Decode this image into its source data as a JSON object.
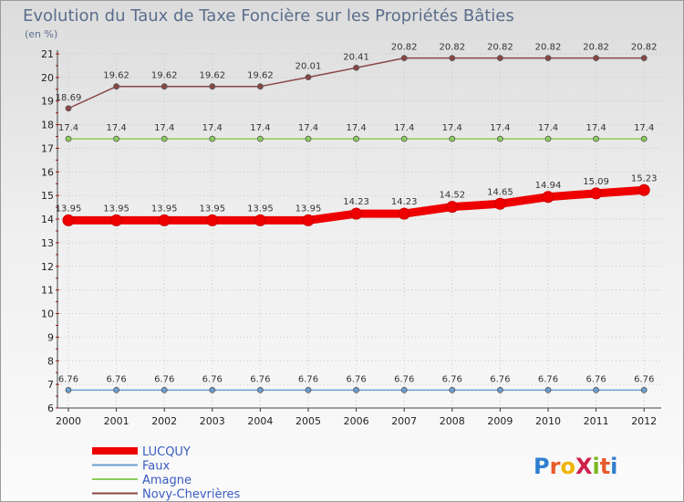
{
  "chart_data": {
    "type": "line",
    "title": "Evolution du Taux de Taxe Foncière sur les Propriétés Bâties",
    "ylabel": "(en %)",
    "xlabel": "",
    "ylim": [
      6,
      21
    ],
    "yticks": [
      6,
      7,
      8,
      9,
      10,
      11,
      12,
      13,
      14,
      15,
      16,
      17,
      18,
      19,
      20,
      21
    ],
    "categories": [
      "2000",
      "2001",
      "2002",
      "2003",
      "2004",
      "2005",
      "2006",
      "2007",
      "2008",
      "2009",
      "2010",
      "2011",
      "2012"
    ],
    "series": [
      {
        "name": "LUCQUY",
        "color": "#ee0000",
        "values": [
          13.95,
          13.95,
          13.95,
          13.95,
          13.95,
          13.95,
          14.23,
          14.23,
          14.52,
          14.65,
          14.94,
          15.09,
          15.23
        ],
        "labels": [
          "13.95",
          "13.95",
          "13.95",
          "13.95",
          "13.95",
          "13.95",
          "14.23",
          "14.23",
          "14.52",
          "14.65",
          "14.94",
          "15.09",
          "15.23"
        ]
      },
      {
        "name": "Faux",
        "color": "#6a9fd0",
        "values": [
          6.76,
          6.76,
          6.76,
          6.76,
          6.76,
          6.76,
          6.76,
          6.76,
          6.76,
          6.76,
          6.76,
          6.76,
          6.76
        ],
        "labels": [
          "6.76",
          "6.76",
          "6.76",
          "6.76",
          "6.76",
          "6.76",
          "6.76",
          "6.76",
          "6.76",
          "6.76",
          "6.76",
          "6.76",
          "6.76"
        ]
      },
      {
        "name": "Amagne",
        "color": "#8ccc5a",
        "values": [
          17.4,
          17.4,
          17.4,
          17.4,
          17.4,
          17.4,
          17.4,
          17.4,
          17.4,
          17.4,
          17.4,
          17.4,
          17.4
        ],
        "labels": [
          "17.4",
          "17.4",
          "17.4",
          "17.4",
          "17.4",
          "17.4",
          "17.4",
          "17.4",
          "17.4",
          "17.4",
          "17.4",
          "17.4",
          "17.4"
        ]
      },
      {
        "name": "Novy-Chevrières",
        "color": "#8a4646",
        "values": [
          18.69,
          19.62,
          19.62,
          19.62,
          19.62,
          20.01,
          20.41,
          20.82,
          20.82,
          20.82,
          20.82,
          20.82,
          20.82
        ],
        "labels": [
          "18.69",
          "19.62",
          "19.62",
          "19.62",
          "19.62",
          "20.01",
          "20.41",
          "20.82",
          "20.82",
          "20.82",
          "20.82",
          "20.82",
          "20.82"
        ]
      }
    ]
  },
  "logo": {
    "text": "ProXiti",
    "letter_colors": [
      "#2f7fd0",
      "#e85b2a",
      "#f0b400",
      "#d0204a",
      "#7ab81e",
      "#e85b2a",
      "#2f7fd0"
    ]
  }
}
